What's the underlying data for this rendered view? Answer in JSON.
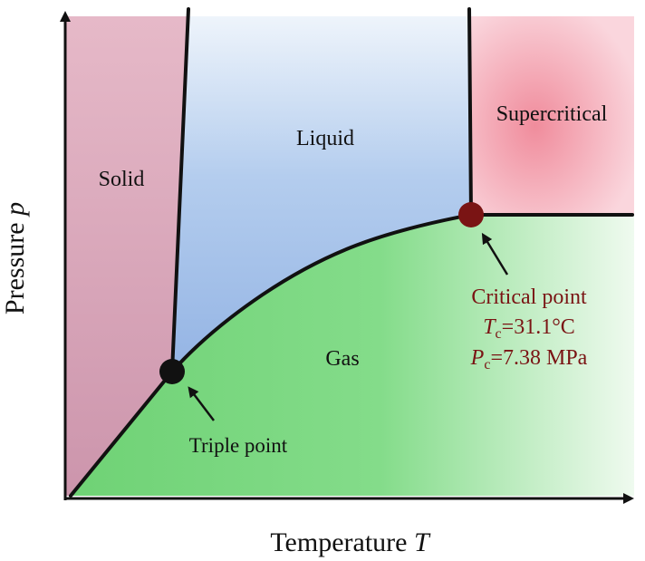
{
  "regions": {
    "solid": "Solid",
    "liquid": "Liquid",
    "gas": "Gas",
    "supercritical": "Supercritical"
  },
  "axes": {
    "x_label_text": "Temperature ",
    "x_label_symbol": "T",
    "y_label_text": "Pressure ",
    "y_label_symbol": "p"
  },
  "triple_point": {
    "label": "Triple point"
  },
  "critical_point": {
    "label": "Critical point",
    "temp_symbol": "T",
    "temp_sub": "c",
    "temp_value": "=31.1°C",
    "pressure_symbol": "P",
    "pressure_sub": "c",
    "pressure_value": "=7.38 MPa"
  },
  "colors": {
    "solid": "#d4a3b5",
    "liquid": "#9ebce6",
    "gas": "#77d77d",
    "supercritical": "#f2a3b0",
    "critical_point": "#7a1414",
    "triple_point": "#111111",
    "boundary": "#111111"
  }
}
